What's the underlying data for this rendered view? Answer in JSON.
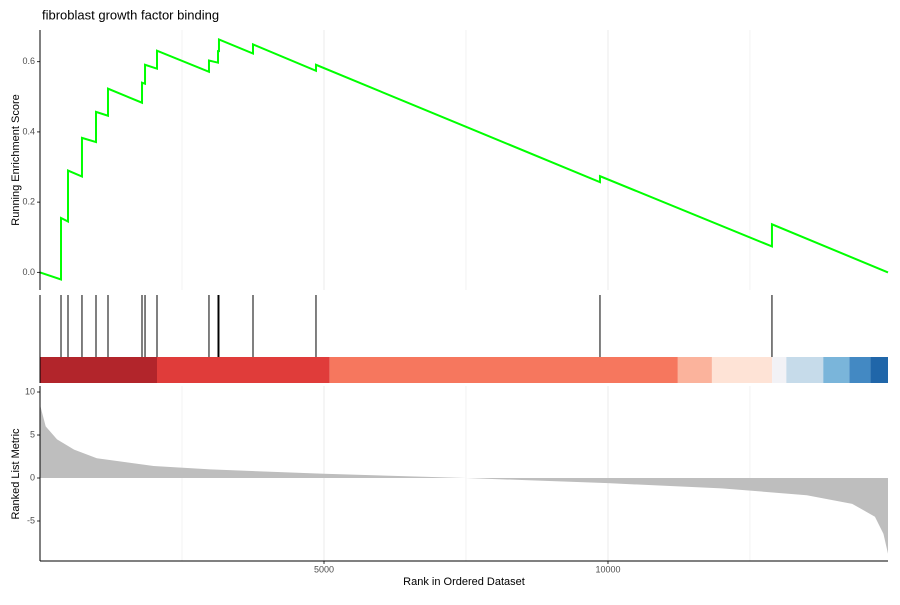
{
  "chart_data": [
    {
      "type": "line",
      "title": "fibroblast growth factor binding",
      "ylabel": "Running Enrichment Score",
      "color": "#00ff00",
      "x": [
        1,
        370,
        370,
        493,
        493,
        739,
        739,
        986,
        986,
        1197,
        1197,
        1796,
        1796,
        1849,
        1849,
        2060,
        2060,
        2975,
        2975,
        3134,
        3134,
        3151,
        3151,
        3750,
        3750,
        4859,
        4859,
        9859,
        9859,
        12887,
        12887,
        14930
      ],
      "values": [
        0,
        -0.02,
        0.155,
        0.145,
        0.29,
        0.273,
        0.383,
        0.371,
        0.457,
        0.446,
        0.523,
        0.483,
        0.54,
        0.537,
        0.591,
        0.58,
        0.631,
        0.571,
        0.603,
        0.597,
        0.63,
        0.63,
        0.663,
        0.623,
        0.649,
        0.574,
        0.591,
        0.257,
        0.274,
        0.074,
        0.137,
        0.0
      ],
      "xlim": [
        0,
        14930
      ],
      "ylim": [
        -0.05,
        0.69
      ],
      "yticks": [
        {
          "value": 0,
          "label": "0.0"
        },
        0.2,
        0.4,
        0.6
      ]
    },
    {
      "type": "rug",
      "hits": [
        370,
        493,
        739,
        986,
        1197,
        1796,
        1849,
        2060,
        2975,
        3134,
        3151,
        3750,
        4859,
        9859,
        12887
      ],
      "band_edges": [
        0,
        2060,
        5100,
        11230,
        11830,
        12890,
        13140,
        13790,
        14250,
        14620,
        14930
      ],
      "band_colors": [
        "#b2252b",
        "#e03c3a",
        "#f6775e",
        "#fbb39c",
        "#fee3d6",
        "#f2f2f6",
        "#c6dbea",
        "#7ab5da",
        "#4389c3",
        "#2066a9"
      ],
      "xlim": [
        0,
        14930
      ]
    },
    {
      "type": "area",
      "ylabel": "Ranked List Metric",
      "xlabel": "Rank in Ordered Dataset",
      "color": "#bebebe",
      "x": [
        1,
        100,
        300,
        600,
        1000,
        2000,
        3000,
        5000,
        7500,
        10000,
        12000,
        13500,
        14300,
        14700,
        14850,
        14930
      ],
      "values": [
        8.5,
        6,
        4.5,
        3.3,
        2.3,
        1.4,
        1.0,
        0.5,
        0,
        -0.6,
        -1.2,
        -2.0,
        -3.0,
        -4.5,
        -6.5,
        -8.8
      ],
      "xlim": [
        0,
        14930
      ],
      "ylim": [
        -9.65,
        10.7
      ],
      "yticks": [
        -5,
        0,
        5,
        10
      ],
      "xticks": [
        5000,
        10000
      ],
      "xminor": [
        2500,
        7500,
        12500
      ]
    }
  ]
}
